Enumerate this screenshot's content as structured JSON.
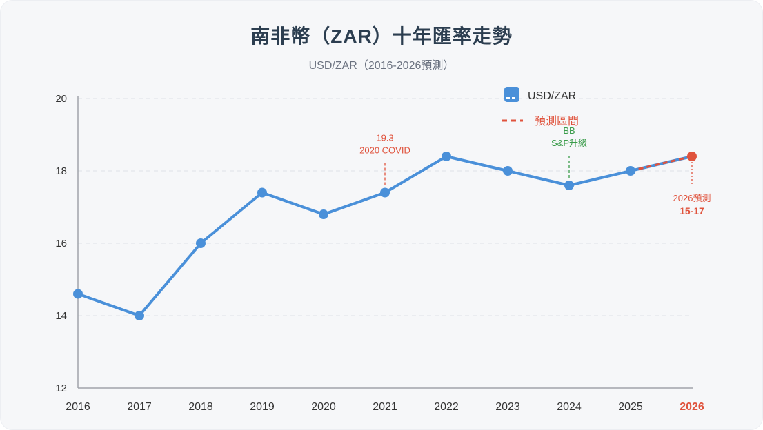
{
  "title": "南非幣（ZAR）十年匯率走勢",
  "subtitle": "USD/ZAR（2016-2026預測）",
  "colors": {
    "line": "#4a90d9",
    "forecast": "#e0533d",
    "annotation_green": "#3a9c4a",
    "title": "#2c3e50",
    "grid": "#e3e6ea",
    "axis": "#a0a4aa",
    "tick_text": "#333333"
  },
  "chart_data": {
    "type": "line",
    "title": "南非幣（ZAR）十年匯率走勢",
    "subtitle": "USD/ZAR（2016-2026預測）",
    "x": [
      "2016",
      "2017",
      "2018",
      "2019",
      "2020",
      "2021",
      "2022",
      "2023",
      "2024",
      "2025",
      "2026"
    ],
    "series": [
      {
        "name": "USD/ZAR",
        "values": [
          14.6,
          14.0,
          16.0,
          17.4,
          16.8,
          17.4,
          18.4,
          18.0,
          17.6,
          18.0,
          18.4
        ]
      }
    ],
    "forecast": {
      "from": "2025",
      "to": "2026"
    },
    "ylim": [
      12,
      20
    ],
    "yticks": [
      12,
      14,
      16,
      18,
      20
    ],
    "grid": true,
    "legend": {
      "placement": "top-right",
      "entries": [
        {
          "label": "USD/ZAR",
          "style": "solid-box"
        },
        {
          "label": "預測區間",
          "style": "dashed-line"
        }
      ]
    },
    "annotations": [
      {
        "x": "2021",
        "lines": [
          "19.3",
          "2020 COVID"
        ],
        "color": "#e0533d",
        "position": "above",
        "style": "dashed"
      },
      {
        "x": "2024",
        "lines": [
          "BB",
          "S&P升級"
        ],
        "color": "#3a9c4a",
        "position": "above",
        "style": "dashed"
      },
      {
        "x": "2026",
        "lines": [
          "2026預測",
          "15-17"
        ],
        "color": "#e0533d",
        "position": "below",
        "style": "dotted"
      }
    ]
  }
}
